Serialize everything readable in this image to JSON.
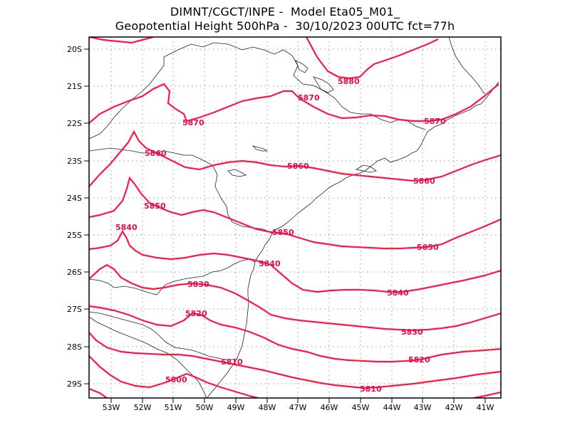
{
  "title": {
    "line1": "DIMNT/CGCT/INPE -  Model Eta05_M01_",
    "line2": "Geopotential Height 500hPa -  30/10/2023 00UTC fct=77h"
  },
  "axes": {
    "lat_labels": [
      "20S",
      "21S",
      "22S",
      "23S",
      "24S",
      "25S",
      "26S",
      "27S",
      "28S",
      "29S"
    ],
    "lon_labels": [
      "53W",
      "52W",
      "51W",
      "50W",
      "49W",
      "48W",
      "47W",
      "46W",
      "45W",
      "44W",
      "43W",
      "42W",
      "41W"
    ]
  },
  "contour_labels": {
    "c5880": "5880",
    "c5870": "5870",
    "c5860": "5860",
    "c5850": "5850",
    "c5840": "5840",
    "c5830": "5830",
    "c5820": "5820",
    "c5810": "5810",
    "c5800": "5800"
  },
  "colors": {
    "contour": "#ff1744",
    "label": "#e0104a",
    "coast": "#222222"
  }
}
